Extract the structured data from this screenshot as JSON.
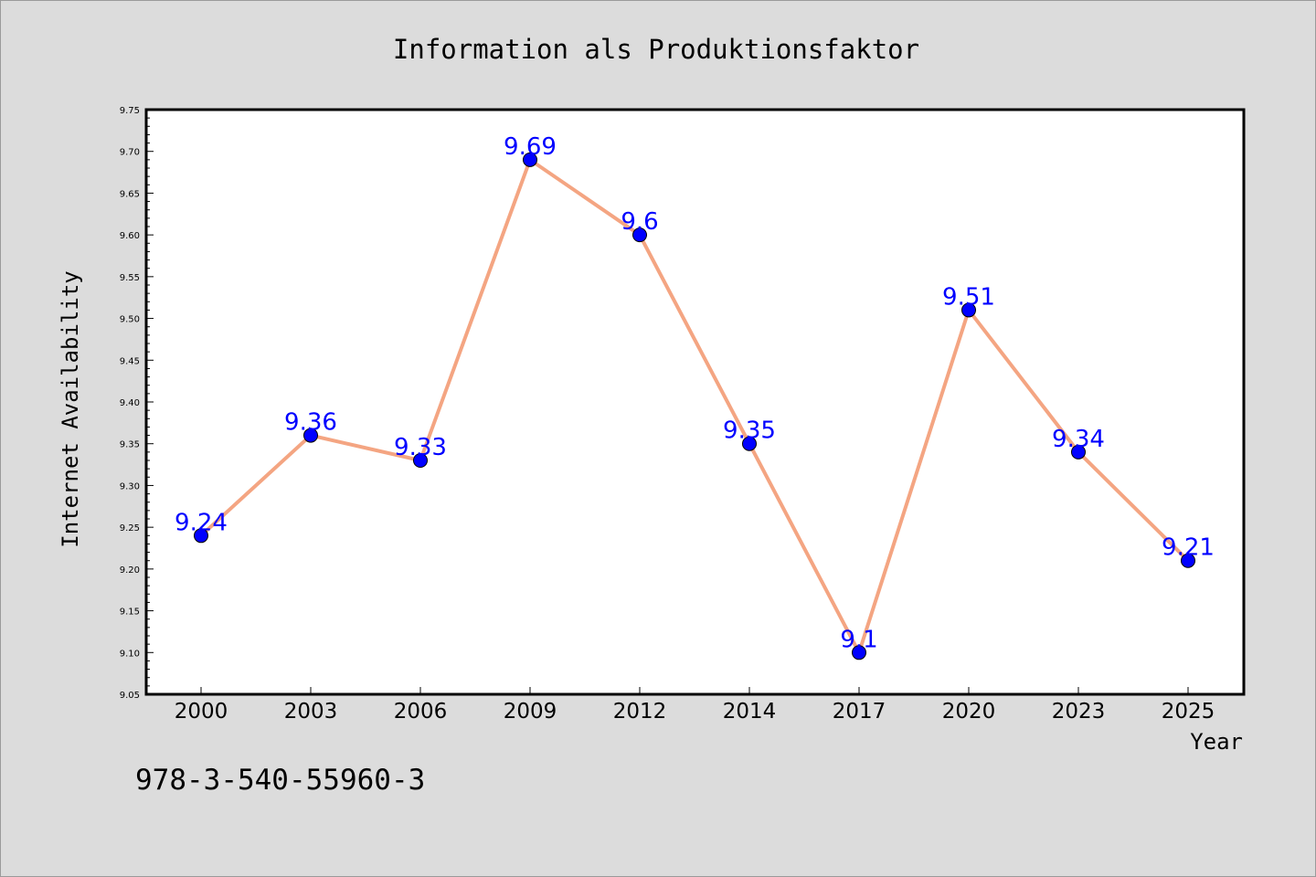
{
  "footnote": "978-3-540-55960-3",
  "colors": {
    "background": "#dcdcdc",
    "plot_background": "#ffffff",
    "line": "#f4a582",
    "marker": "#0000ff",
    "data_label": "#0000ff"
  },
  "chart_data": {
    "type": "line",
    "title": "Information als Produktionsfaktor",
    "xlabel": "Year",
    "ylabel": "Internet Availability",
    "categories": [
      "2000",
      "2003",
      "2006",
      "2009",
      "2012",
      "2014",
      "2017",
      "2020",
      "2023",
      "2025"
    ],
    "series": [
      {
        "values": [
          9.24,
          9.36,
          9.33,
          9.69,
          9.6,
          9.35,
          9.1,
          9.51,
          9.34,
          9.21
        ]
      }
    ],
    "data_labels": [
      "9.24",
      "9.36",
      "9.33",
      "9.69",
      "9.6",
      "9.35",
      "9.1",
      "9.51",
      "9.34",
      "9.21"
    ],
    "ylim": [
      9.05,
      9.75
    ],
    "yticks": [
      "9.05",
      "9.10",
      "9.15",
      "9.20",
      "9.25",
      "9.30",
      "9.35",
      "9.40",
      "9.45",
      "9.50",
      "9.55",
      "9.60",
      "9.65",
      "9.70",
      "9.75"
    ],
    "grid": false,
    "legend": "none"
  }
}
